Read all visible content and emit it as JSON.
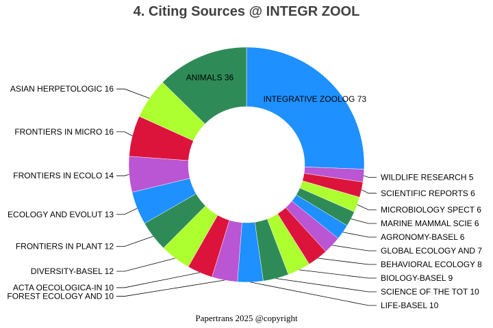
{
  "chart_data": {
    "type": "pie",
    "title": "4. Citing Sources @ INTEGR ZOOL",
    "footer": "Papertrans 2025 @copyright",
    "donut": true,
    "slices": [
      {
        "label": "INTEGRATIVE ZOOLOG",
        "value": 73,
        "color": "#1e90ff"
      },
      {
        "label": "WILDLIFE RESEARCH",
        "value": 5,
        "color": "#ba55d3"
      },
      {
        "label": "SCIENTIFIC REPORTS",
        "value": 6,
        "color": "#dc143c"
      },
      {
        "label": "MICROBIOLOGY SPECT",
        "value": 6,
        "color": "#adff2f"
      },
      {
        "label": "MARINE MAMMAL SCIE",
        "value": 6,
        "color": "#2e8b57"
      },
      {
        "label": "AGRONOMY-BASEL",
        "value": 6,
        "color": "#1e90ff"
      },
      {
        "label": "GLOBAL ECOLOGY AND",
        "value": 7,
        "color": "#ba55d3"
      },
      {
        "label": "BEHAVIORAL ECOLOGY",
        "value": 8,
        "color": "#dc143c"
      },
      {
        "label": "BIOLOGY-BASEL",
        "value": 9,
        "color": "#adff2f"
      },
      {
        "label": "SCIENCE OF THE TOT",
        "value": 10,
        "color": "#2e8b57"
      },
      {
        "label": "LIFE-BASEL",
        "value": 10,
        "color": "#1e90ff"
      },
      {
        "label": "FOREST ECOLOGY AND",
        "value": 10,
        "color": "#ba55d3"
      },
      {
        "label": "ACTA OECOLOGICA-IN",
        "value": 10,
        "color": "#dc143c"
      },
      {
        "label": "DIVERSITY-BASEL",
        "value": 12,
        "color": "#adff2f"
      },
      {
        "label": "FRONTIERS IN PLANT",
        "value": 12,
        "color": "#2e8b57"
      },
      {
        "label": "ECOLOGY AND EVOLUT",
        "value": 13,
        "color": "#1e90ff"
      },
      {
        "label": "FRONTIERS IN ECOLO",
        "value": 14,
        "color": "#ba55d3"
      },
      {
        "label": "FRONTIERS IN MICRO",
        "value": 16,
        "color": "#dc143c"
      },
      {
        "label": "ASIAN HERPETOLOGIC",
        "value": 16,
        "color": "#adff2f"
      },
      {
        "label": "ANIMALS",
        "value": 36,
        "color": "#2e8b57"
      }
    ]
  }
}
